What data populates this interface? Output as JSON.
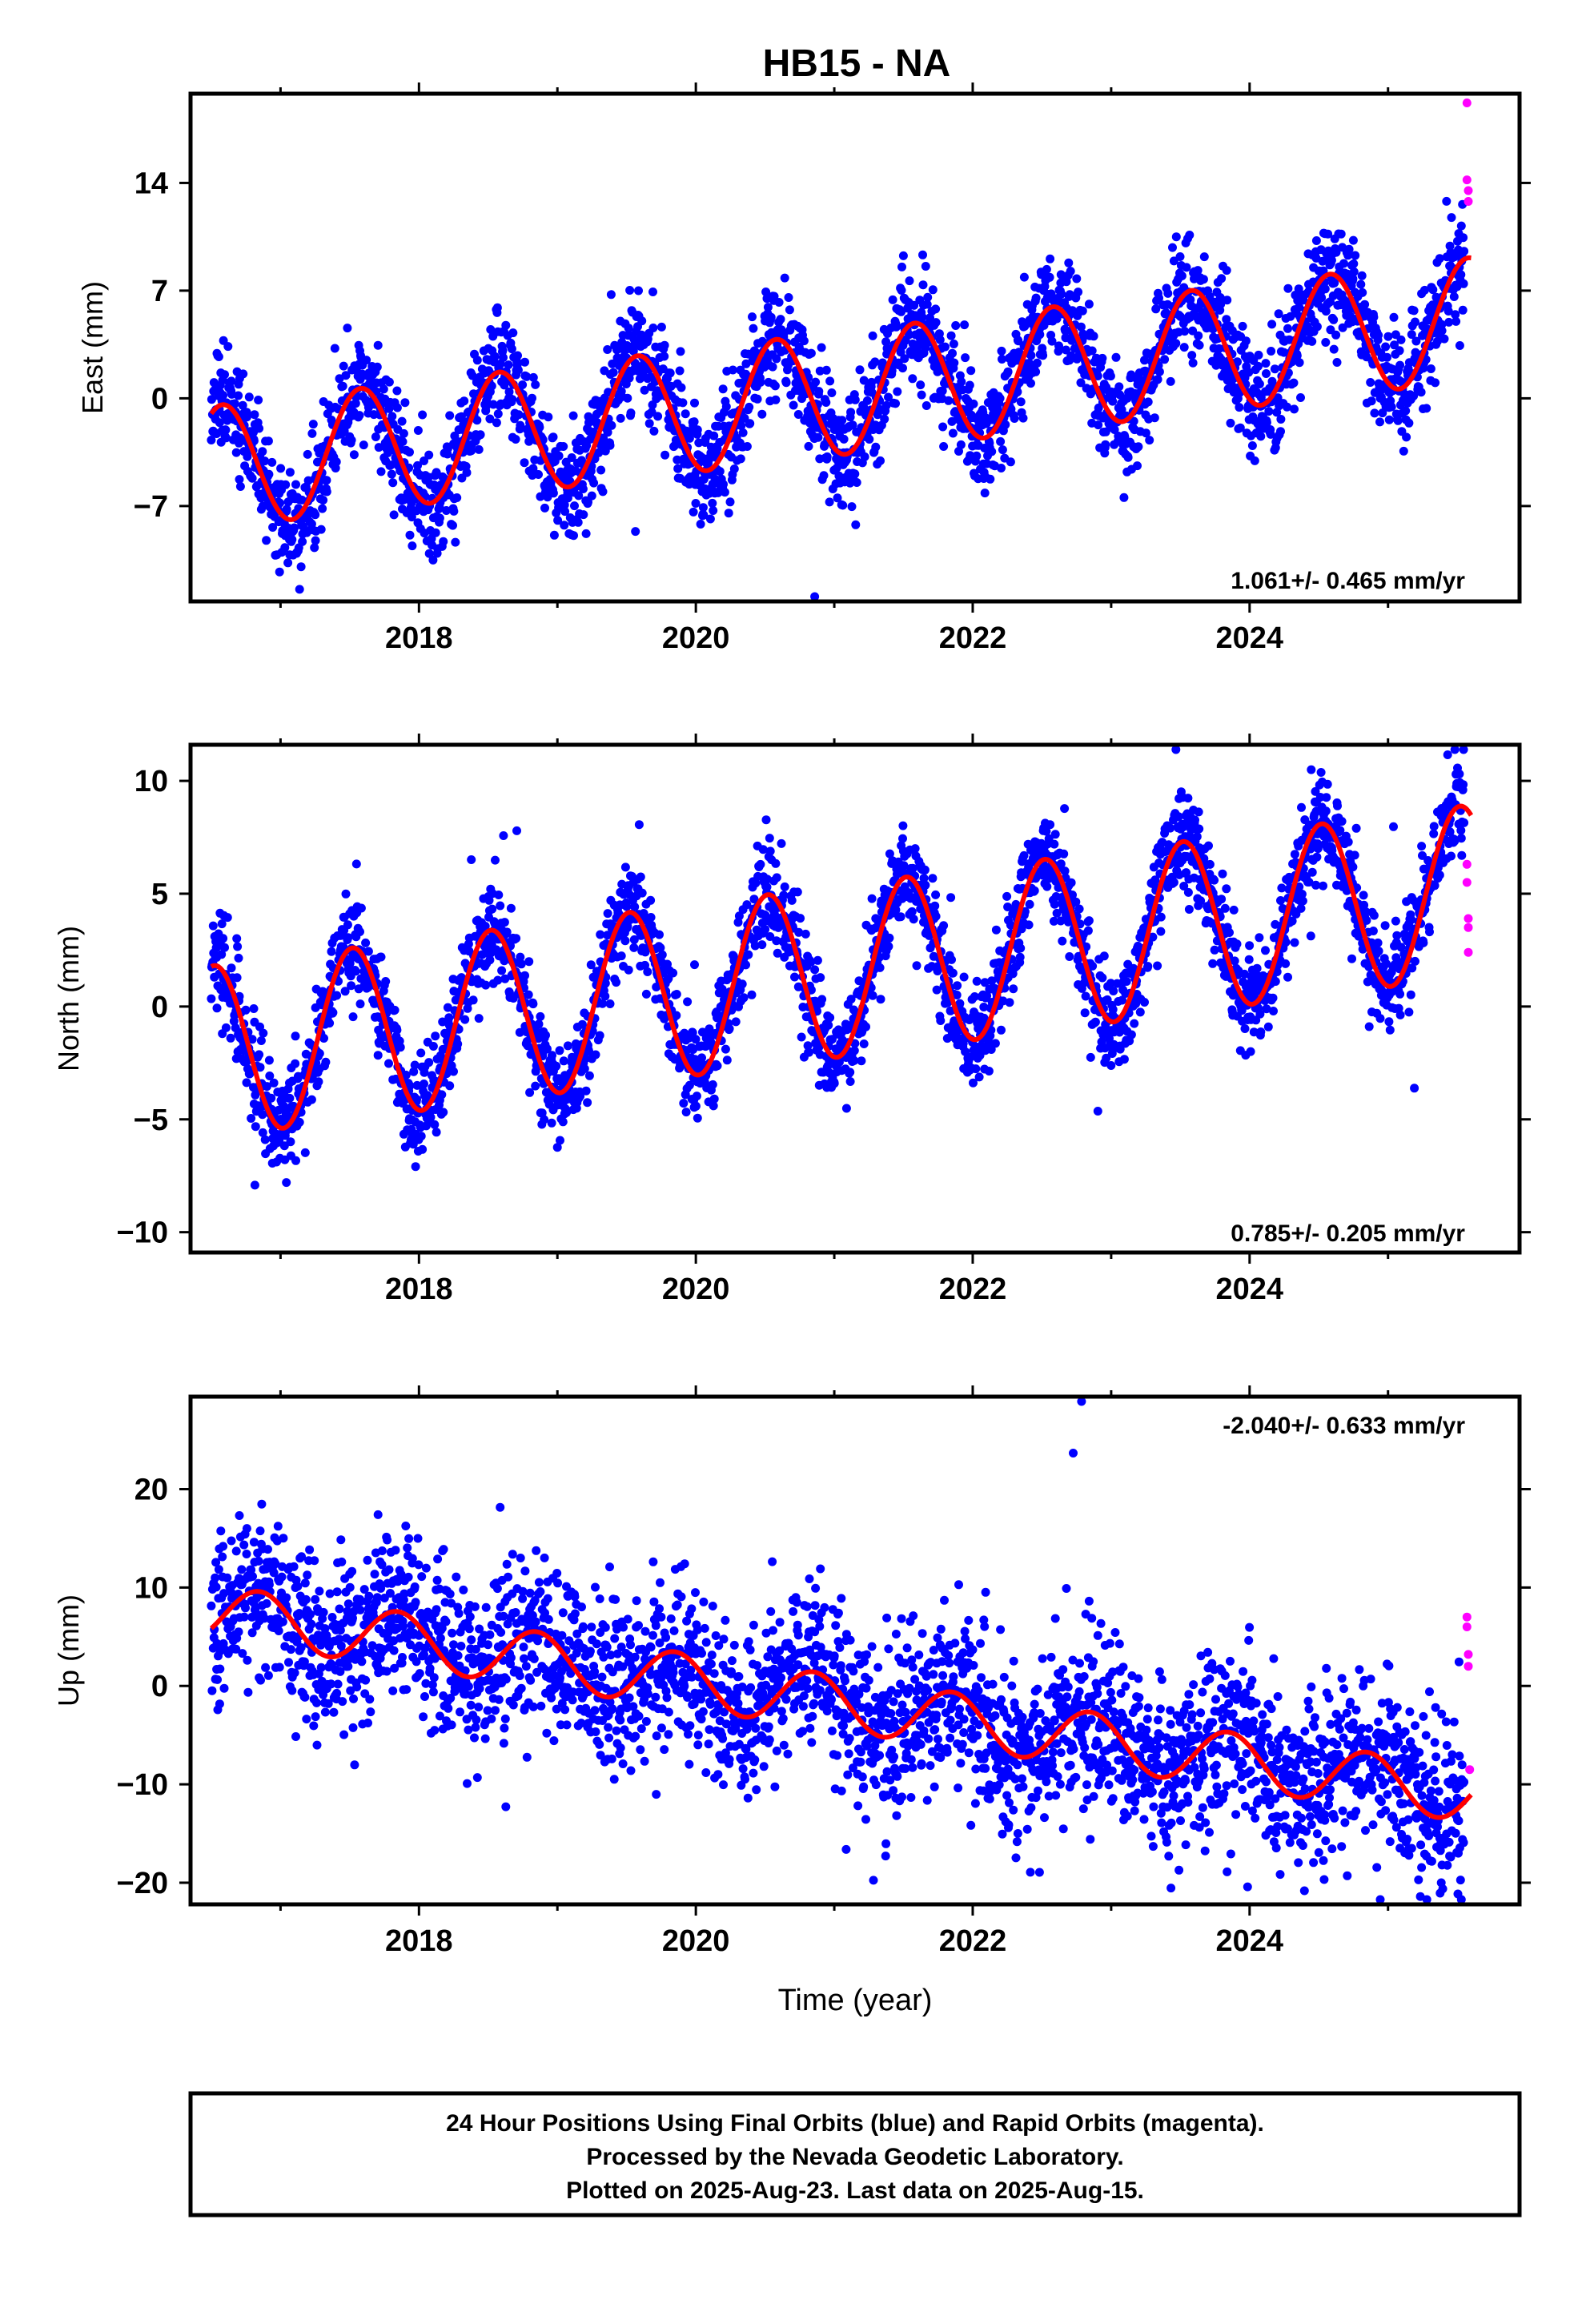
{
  "title": "HB15 - NA",
  "x_axis": {
    "label": "Time (year)",
    "range": [
      2016.35,
      2025.95
    ],
    "tick_labels": [
      "2018",
      "2020",
      "2022",
      "2024"
    ],
    "tick_values": [
      2018,
      2020,
      2022,
      2024
    ],
    "minor_tick_values": [
      2017,
      2019,
      2021,
      2023,
      2025
    ]
  },
  "colors": {
    "final": "#0000ff",
    "rapid": "#ff00ff",
    "model": "#ff0000",
    "frame": "#000000"
  },
  "footer": {
    "line1": "24 Hour Positions Using Final Orbits (blue) and Rapid Orbits (magenta).",
    "line2": "Processed by the Nevada Geodetic Laboratory.",
    "line3": "Plotted on 2025-Aug-23. Last data on 2025-Aug-15."
  },
  "chart_data": [
    {
      "type": "scatter",
      "panel": "east",
      "ylabel": "East (mm)",
      "ylim": [
        -13.2,
        19.8
      ],
      "y_tick_labels": [
        "-7",
        "0",
        "7",
        "14"
      ],
      "y_tick_values": [
        -7,
        0,
        7,
        14
      ],
      "rate_label": "1.061+/- 0.465 mm/yr",
      "rate_position": "bottom-right",
      "grid": false,
      "model": {
        "name": "",
        "rate": 1.061,
        "value_2016_5": -4.5,
        "amplitude": 4.0,
        "peak_phase": 0.58
      },
      "series": [
        {
          "name": "",
          "kind": "final_points",
          "x_start": 2016.5,
          "x_end": 2025.55,
          "trend_rate": 1.061,
          "noise_sd": 1.8,
          "seed": 11
        },
        {
          "name": "",
          "kind": "rapid_points",
          "x": [
            2025.57,
            2025.57,
            2025.58,
            2025.58
          ],
          "y": [
            19.2,
            14.2,
            13.5,
            12.8
          ]
        }
      ]
    },
    {
      "type": "scatter",
      "panel": "north",
      "ylabel": "North (mm)",
      "ylim": [
        -10.9,
        11.6
      ],
      "y_tick_labels": [
        "-10",
        "-5",
        "0",
        "5",
        "10"
      ],
      "y_tick_values": [
        -10,
        -5,
        0,
        5,
        10
      ],
      "rate_label": "0.785+/- 0.205 mm/yr",
      "rate_position": "bottom-right",
      "grid": false,
      "model": {
        "name": "",
        "rate": 0.785,
        "value_2016_5": -2.0,
        "amplitude": 3.8,
        "peak_phase": 0.52
      },
      "series": [
        {
          "name": "",
          "kind": "final_points",
          "x_start": 2016.5,
          "x_end": 2025.55,
          "trend_rate": 0.785,
          "noise_sd": 1.1,
          "seed": 23
        },
        {
          "name": "",
          "kind": "rapid_points",
          "x": [
            2025.57,
            2025.57,
            2025.58,
            2025.58,
            2025.58
          ],
          "y": [
            6.3,
            5.5,
            3.9,
            3.5,
            2.4
          ]
        }
      ]
    },
    {
      "type": "scatter",
      "panel": "up",
      "ylabel": "Up (mm)",
      "ylim": [
        -22.2,
        29.4
      ],
      "y_tick_labels": [
        "-20",
        "-10",
        "0",
        "10",
        "20"
      ],
      "y_tick_values": [
        -20,
        -10,
        0,
        10,
        20
      ],
      "rate_label": "-2.040+/- 0.633 mm/yr",
      "rate_position": "top-right",
      "grid": false,
      "model": {
        "name": "",
        "rate": -2.04,
        "value_2016_5": 7.5,
        "amplitude": 2.8,
        "peak_phase": 0.85
      },
      "series": [
        {
          "name": "",
          "kind": "final_points",
          "x_start": 2016.5,
          "x_end": 2025.55,
          "trend_rate": -2.04,
          "noise_sd": 4.2,
          "seed": 37
        },
        {
          "name": "",
          "kind": "rapid_points",
          "x": [
            2025.57,
            2025.57,
            2025.58,
            2025.58,
            2025.59
          ],
          "y": [
            7.0,
            6.0,
            3.2,
            2.0,
            -8.5
          ]
        }
      ]
    }
  ]
}
